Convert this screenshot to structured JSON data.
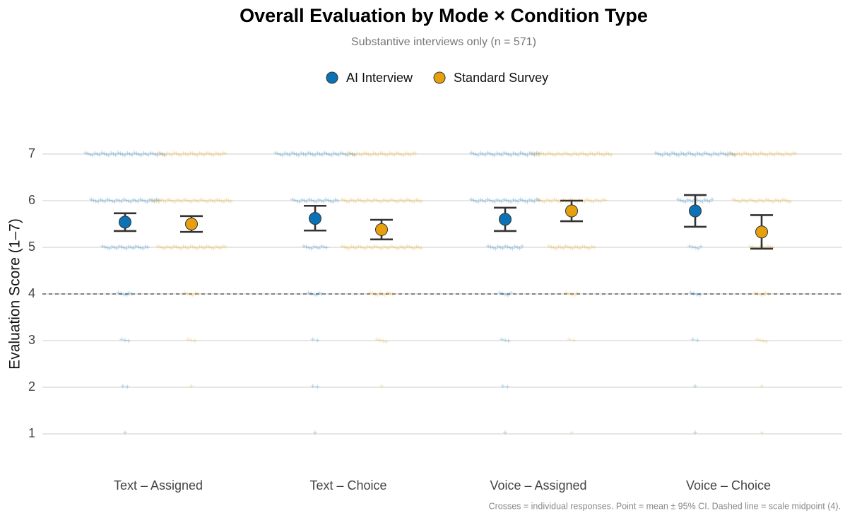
{
  "chart_data": {
    "type": "errorbar",
    "title": "Overall Evaluation by Mode × Condition Type",
    "subtitle": "Substantive interviews only (n = 571)",
    "y_label": "Evaluation Score (1–7)",
    "footnote": "Crosses = individual responses. Point = mean ± 95% CI. Dashed line = scale midpoint (4).",
    "categories": [
      "Text – Assigned",
      "Text – Choice",
      "Voice – Assigned",
      "Voice – Choice"
    ],
    "series": [
      {
        "name": "AI Interview",
        "color": "#0b72b5",
        "values": [
          5.54,
          5.62,
          5.6,
          5.78
        ],
        "lower": [
          5.35,
          5.36,
          5.35,
          5.44
        ],
        "upper": [
          5.73,
          5.89,
          5.85,
          6.12
        ],
        "counts": [
          [
            1,
            2,
            3,
            6,
            20,
            30,
            35
          ],
          [
            1,
            2,
            2,
            6,
            10,
            20,
            35
          ],
          [
            1,
            2,
            3,
            5,
            15,
            30,
            30
          ],
          [
            1,
            1,
            2,
            4,
            5,
            15,
            35
          ]
        ]
      },
      {
        "name": "Standard Survey",
        "color": "#e6a00d",
        "values": [
          5.5,
          5.38,
          5.78,
          5.33
        ],
        "lower": [
          5.33,
          5.17,
          5.56,
          4.97
        ],
        "upper": [
          5.67,
          5.59,
          6.0,
          5.69
        ],
        "counts": [
          [
            0,
            1,
            3,
            6,
            30,
            35,
            30
          ],
          [
            0,
            1,
            4,
            10,
            35,
            35,
            30
          ],
          [
            1,
            0,
            2,
            5,
            20,
            30,
            35
          ],
          [
            1,
            1,
            4,
            6,
            10,
            25,
            30
          ]
        ]
      }
    ],
    "levels": [
      1,
      2,
      3,
      4,
      5,
      6,
      7
    ],
    "ylim": [
      0.5,
      7.5
    ],
    "yticks": [
      1,
      2,
      3,
      4,
      5,
      6,
      7
    ],
    "midline": 4,
    "grid": true,
    "legend": "top"
  }
}
